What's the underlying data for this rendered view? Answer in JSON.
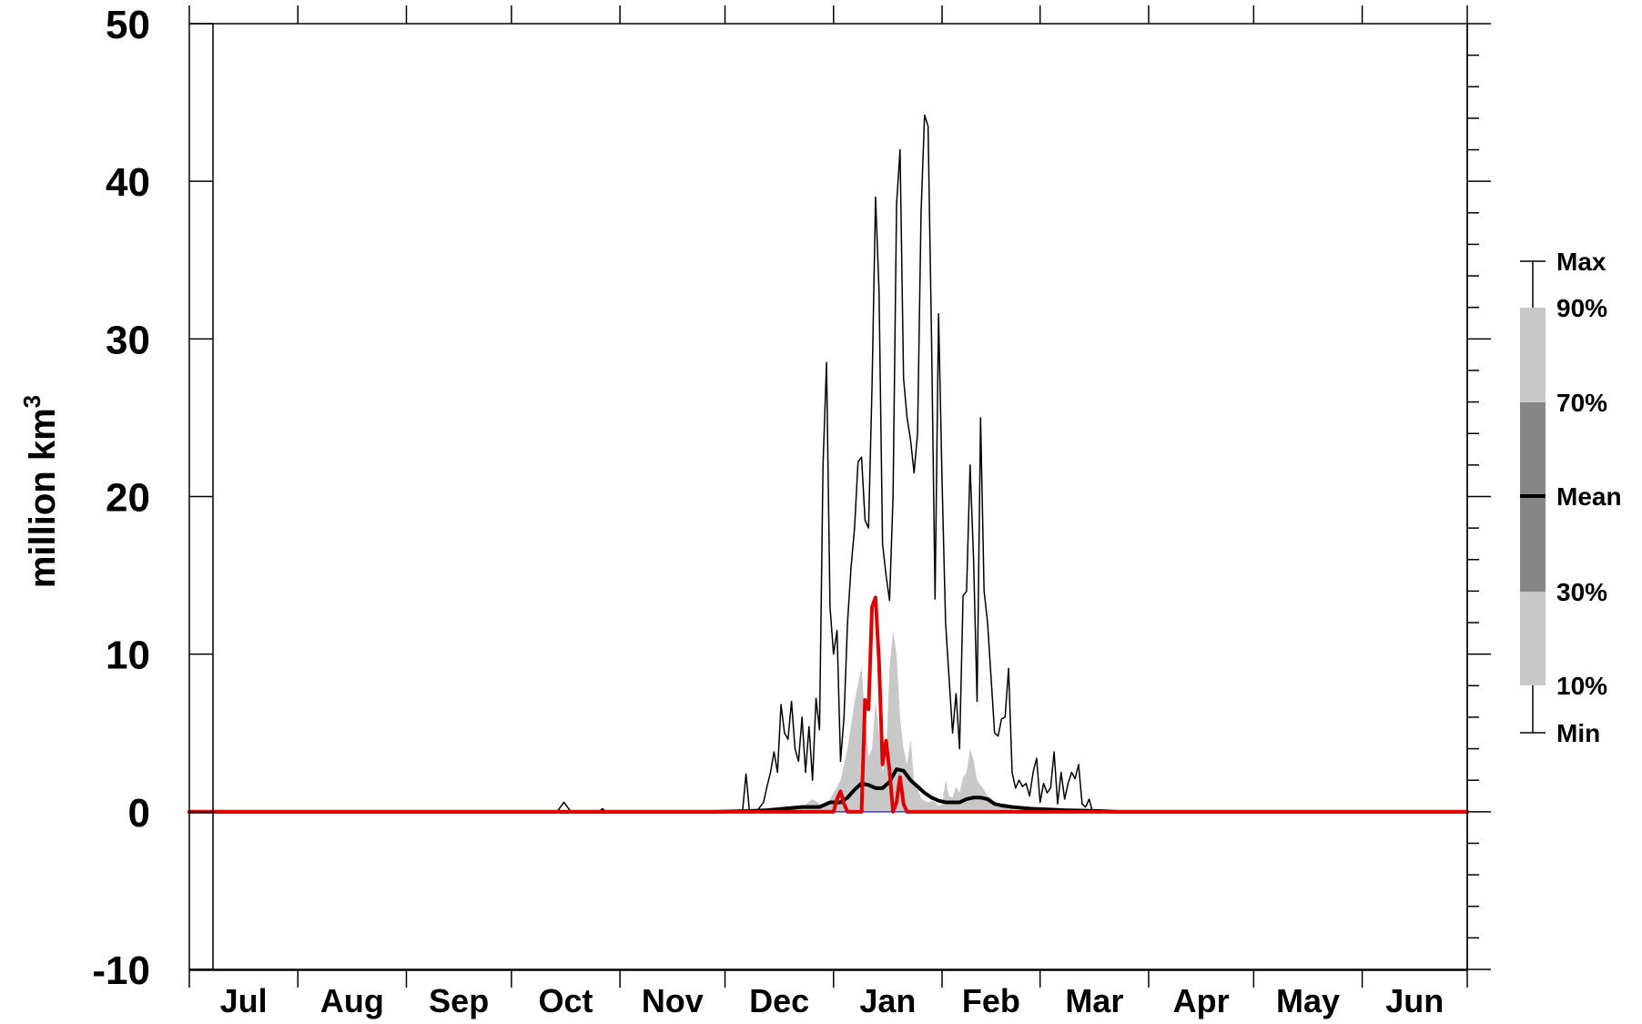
{
  "chart_data": {
    "type": "area",
    "title": "",
    "xlabel": "",
    "ylabel": "million km",
    "ylabel_superscript": "3",
    "ylim": [
      -10,
      50
    ],
    "yticks": [
      -10,
      0,
      10,
      20,
      30,
      40,
      50
    ],
    "ytick_labels": [
      "-10",
      "0",
      "10",
      "20",
      "30",
      "40",
      "50"
    ],
    "xlim": [
      0,
      365
    ],
    "months": [
      "Jul",
      "Aug",
      "Sep",
      "Oct",
      "Nov",
      "Dec",
      "Jan",
      "Feb",
      "Mar",
      "Apr",
      "May",
      "Jun"
    ],
    "month_days": [
      31,
      31,
      30,
      31,
      30,
      31,
      31,
      28,
      31,
      30,
      31,
      30
    ],
    "grid": false,
    "series": [
      {
        "role": "max",
        "color": "#000000",
        "x": [
          0,
          105,
          107,
          109,
          117,
          118,
          119,
          158,
          159,
          160,
          162,
          164,
          165,
          166,
          167,
          168,
          169,
          170,
          171,
          172,
          173,
          174,
          175,
          176,
          177,
          178,
          179,
          180,
          181,
          182,
          183,
          184,
          185,
          186,
          187,
          188,
          189,
          190,
          191,
          192,
          193,
          194,
          195,
          196,
          197,
          198,
          199,
          200,
          201,
          202,
          203,
          204,
          205,
          206,
          207,
          208,
          209,
          210,
          211,
          212,
          213,
          214,
          215,
          216,
          217,
          218,
          219,
          220,
          221,
          222,
          223,
          224,
          225,
          226,
          227,
          228,
          229,
          230,
          231,
          232,
          233,
          234,
          235,
          236,
          237,
          238,
          239,
          240,
          241,
          242,
          243,
          244,
          245,
          246,
          247,
          248,
          249,
          250,
          251,
          252,
          253,
          254,
          255,
          256,
          257,
          258,
          260,
          262,
          264,
          266,
          268,
          270,
          365
        ],
        "y": [
          0,
          0,
          0.6,
          0,
          0,
          0.2,
          0,
          0,
          2.4,
          0,
          0,
          0.6,
          1.6,
          2.5,
          3.8,
          2.5,
          6.8,
          5,
          4.6,
          7,
          4,
          3.2,
          6,
          2.5,
          5.4,
          2,
          7.2,
          5.2,
          22,
          28.5,
          13,
          10,
          11.5,
          3.2,
          6,
          12,
          15.5,
          18,
          22.2,
          22.5,
          18.5,
          18,
          27,
          39,
          33,
          17,
          15,
          13.4,
          20,
          38.5,
          42,
          27.5,
          25,
          23.6,
          21.5,
          24,
          38,
          44.2,
          43.5,
          30,
          13.5,
          31.6,
          21,
          12,
          8.5,
          5,
          7.5,
          4,
          13.7,
          14,
          22,
          16,
          7,
          25,
          14,
          12,
          8.5,
          5,
          4.8,
          5.9,
          6,
          9.1,
          2.5,
          1.5,
          2,
          1.6,
          1.8,
          1,
          2.5,
          3.4,
          0.6,
          1.8,
          1.2,
          1.5,
          3.8,
          0.5,
          2.5,
          0.8,
          1.8,
          2.5,
          2.1,
          3,
          0.5,
          0.3,
          0.8,
          0,
          0,
          0,
          0,
          0,
          0,
          0,
          0
        ],
        "stroke_width": 1.5
      },
      {
        "role": "p90",
        "color": "#c8c8c8",
        "x": [
          0,
          160,
          170,
          175,
          178,
          180,
          182,
          184,
          186,
          188,
          190,
          192,
          193,
          194,
          195,
          196,
          197,
          198,
          199,
          200,
          201,
          202,
          203,
          204,
          205,
          206,
          207,
          208,
          209,
          210,
          211,
          212,
          213,
          214,
          215,
          216,
          217,
          218,
          219,
          220,
          221,
          222,
          223,
          224,
          225,
          226,
          227,
          228,
          229,
          230,
          232,
          234,
          236,
          240,
          365
        ],
        "y": [
          0,
          0,
          0.1,
          0.3,
          0.8,
          0.5,
          0.4,
          1.2,
          2,
          4,
          7,
          9.2,
          6,
          3.5,
          4,
          7,
          5,
          2.5,
          3.5,
          9,
          11.5,
          10,
          6,
          4,
          3,
          4.6,
          2,
          1.5,
          0.9,
          0.7,
          0.6,
          0.7,
          0.6,
          0.4,
          0.5,
          2,
          1,
          0.9,
          1.6,
          1.2,
          2.2,
          2.5,
          4,
          3.3,
          2,
          1.7,
          1.4,
          1,
          0.9,
          0.5,
          0.3,
          0.2,
          0.1,
          0,
          0
        ]
      },
      {
        "role": "mean",
        "color": "#000000",
        "x": [
          0,
          150,
          160,
          165,
          170,
          175,
          180,
          183,
          186,
          188,
          190,
          192,
          194,
          196,
          198,
          200,
          202,
          204,
          206,
          208,
          210,
          212,
          214,
          216,
          218,
          220,
          222,
          224,
          226,
          228,
          230,
          232,
          235,
          240,
          250,
          260,
          265,
          365
        ],
        "y": [
          0,
          0,
          0.05,
          0.1,
          0.2,
          0.3,
          0.3,
          0.6,
          0.6,
          0.9,
          1.4,
          1.8,
          1.7,
          1.5,
          1.5,
          1.9,
          2.7,
          2.6,
          2.0,
          1.6,
          1.2,
          0.9,
          0.7,
          0.6,
          0.6,
          0.6,
          0.8,
          0.9,
          0.9,
          0.8,
          0.5,
          0.4,
          0.3,
          0.2,
          0.1,
          0.05,
          0,
          0
        ],
        "stroke_width": 4
      },
      {
        "role": "min",
        "color": "#3333ff",
        "x": [
          0,
          365
        ],
        "y": [
          0,
          0
        ],
        "stroke_width": 1.5
      },
      {
        "role": "current",
        "color": "#e00000",
        "x": [
          0,
          184,
          185,
          186,
          187,
          188,
          189,
          192,
          193,
          194,
          195,
          196,
          197,
          198,
          199,
          200,
          201,
          202,
          203,
          204,
          205,
          365
        ],
        "y": [
          0,
          0,
          0.8,
          1.3,
          0.5,
          0,
          0,
          0,
          7.1,
          6.5,
          13,
          13.6,
          9.5,
          3,
          4.5,
          2.6,
          0,
          0.6,
          2.2,
          0.5,
          0,
          0
        ],
        "stroke_width": 4
      }
    ],
    "legend": {
      "placement": "right",
      "items": [
        {
          "key": "max",
          "label": "Max"
        },
        {
          "key": "p90",
          "label": "90%",
          "color": "#c8c8c8"
        },
        {
          "key": "p70",
          "label": "70%",
          "color": "#868686"
        },
        {
          "key": "mean",
          "label": "Mean"
        },
        {
          "key": "p30",
          "label": "30%",
          "color": "#868686"
        },
        {
          "key": "p10",
          "label": "10%",
          "color": "#c8c8c8"
        },
        {
          "key": "min",
          "label": "Min"
        }
      ]
    }
  }
}
